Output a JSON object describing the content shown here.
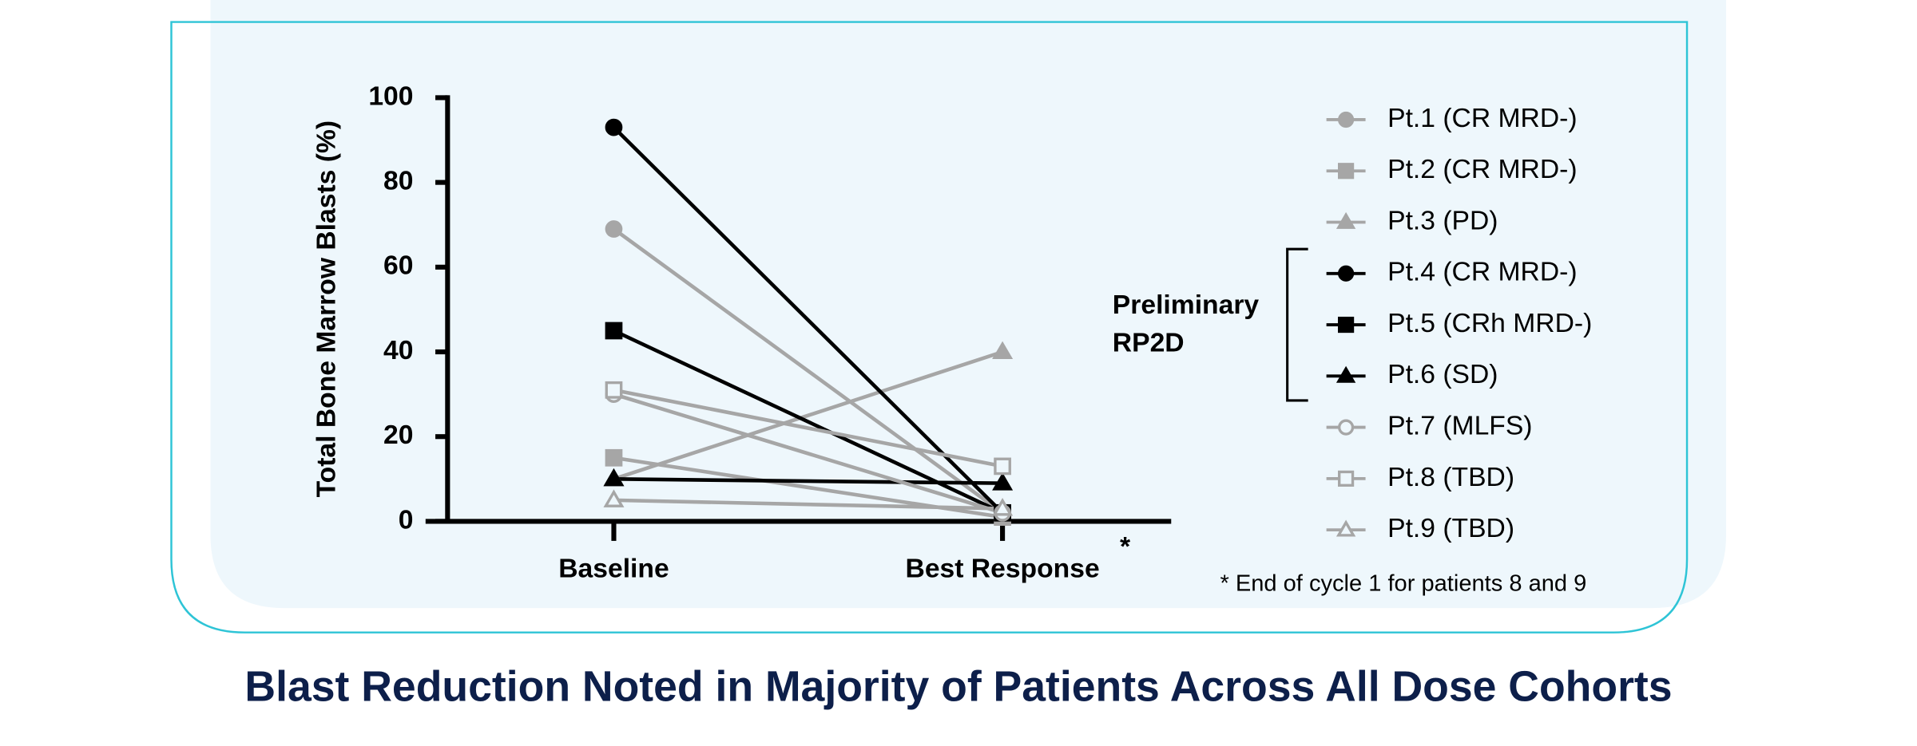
{
  "chart_data": {
    "type": "line",
    "title": "Blast Reduction Noted in Majority of Patients Across All Dose Cohorts",
    "y_label": "Total Bone Marrow Blasts (%)",
    "categories": [
      "Baseline",
      "Best Response"
    ],
    "category_note": "*",
    "footnote": "* End of cycle 1 for patients 8 and 9",
    "bracket_label": [
      "Preliminary",
      "RP2D"
    ],
    "ylim": [
      0,
      100
    ],
    "yticks": [
      0,
      20,
      40,
      60,
      80,
      100
    ],
    "series": [
      {
        "name": "Pt.1 (CR MRD-)",
        "color": "#a6a6a6",
        "marker": "circle",
        "filled": true,
        "values": [
          69,
          2
        ]
      },
      {
        "name": "Pt.2 (CR MRD-)",
        "color": "#a6a6a6",
        "marker": "square",
        "filled": true,
        "values": [
          15,
          1
        ]
      },
      {
        "name": "Pt.3 (PD)",
        "color": "#a6a6a6",
        "marker": "triangle",
        "filled": true,
        "values": [
          10,
          40
        ]
      },
      {
        "name": "Pt.4 (CR MRD-)",
        "color": "#000000",
        "marker": "circle",
        "filled": true,
        "values": [
          93,
          2
        ]
      },
      {
        "name": "Pt.5 (CRh MRD-)",
        "color": "#000000",
        "marker": "square",
        "filled": true,
        "values": [
          45,
          2
        ]
      },
      {
        "name": "Pt.6 (SD)",
        "color": "#000000",
        "marker": "triangle",
        "filled": true,
        "values": [
          10,
          9
        ]
      },
      {
        "name": "Pt.7 (MLFS)",
        "color": "#a6a6a6",
        "marker": "circle",
        "filled": false,
        "values": [
          30,
          2
        ]
      },
      {
        "name": "Pt.8 (TBD)",
        "color": "#a6a6a6",
        "marker": "square",
        "filled": false,
        "values": [
          31,
          13
        ]
      },
      {
        "name": "Pt.9 (TBD)",
        "color": "#a6a6a6",
        "marker": "triangle",
        "filled": false,
        "values": [
          5,
          3
        ]
      }
    ]
  }
}
